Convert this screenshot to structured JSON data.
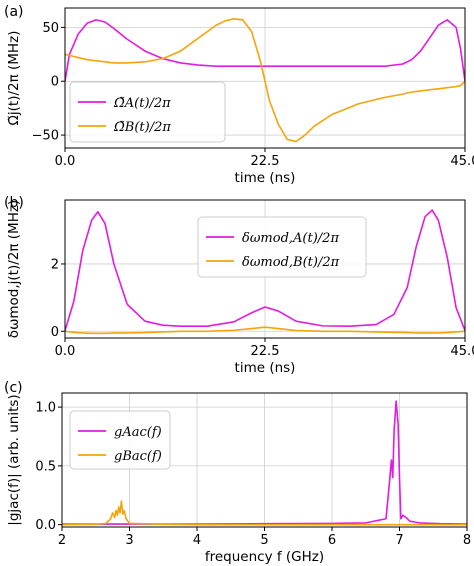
{
  "chart_data": [
    {
      "panel_label": "(a)",
      "type": "line",
      "xlabel": "time (ns)",
      "ylabel": "Ω̃j(t)/2π (MHz)",
      "xlim": [
        0,
        45
      ],
      "ylim": [
        -62,
        68
      ],
      "xticks": [
        0,
        22.5,
        45
      ],
      "xtick_labels": [
        "0.0",
        "22.5",
        "45.0"
      ],
      "yticks": [
        -50,
        0,
        50
      ],
      "ytick_labels": [
        "−50",
        "0",
        "50"
      ],
      "grid": true,
      "legend": "bottom-left",
      "x": [
        0,
        0.5,
        1.5,
        2.5,
        3.5,
        4.5,
        5.5,
        7,
        9,
        11,
        13,
        15,
        17,
        18,
        19,
        20,
        21,
        22,
        22.5,
        23,
        24,
        25,
        26,
        27,
        28,
        30,
        33,
        36,
        38,
        39,
        40,
        41,
        42,
        43,
        44,
        44.5,
        45
      ],
      "series": [
        {
          "name": "Ω̃A(t)/2π",
          "color": "#e31ae3",
          "values": [
            0,
            25,
            44,
            54,
            57,
            55,
            49,
            39,
            28,
            21,
            17,
            15,
            14,
            14,
            14,
            14,
            14,
            14,
            14,
            14,
            14,
            14,
            14,
            14,
            14,
            14,
            14,
            14,
            16,
            20,
            28,
            40,
            52,
            57,
            50,
            30,
            0
          ]
        },
        {
          "name": "Ω̃B(t)/2π",
          "color": "#f5a40a",
          "values": [
            25,
            24,
            22,
            20,
            19,
            18,
            17,
            17,
            18,
            21,
            28,
            40,
            52,
            56,
            58,
            57,
            46,
            18,
            0,
            -18,
            -40,
            -54,
            -56,
            -50,
            -42,
            -31,
            -21,
            -15,
            -12,
            -10,
            -9,
            -8,
            -7,
            -6,
            -5,
            -4,
            0
          ]
        }
      ]
    },
    {
      "panel_label": "(b)",
      "type": "line",
      "xlabel": "time (ns)",
      "ylabel": "δωmod,j(t)/2π (MHz)",
      "xlim": [
        0,
        45
      ],
      "ylim": [
        -0.2,
        3.9
      ],
      "xticks": [
        0,
        22.5,
        45
      ],
      "xtick_labels": [
        "0.0",
        "22.5",
        "45.0"
      ],
      "yticks": [
        0,
        2
      ],
      "ytick_labels": [
        "0",
        "2"
      ],
      "grid": true,
      "legend": "top-right",
      "x": [
        0,
        1,
        2,
        3,
        3.7,
        4.5,
        5.5,
        7,
        9,
        11,
        13,
        16,
        19,
        21,
        22.5,
        24,
        26,
        29,
        32,
        35,
        37,
        38.5,
        39.5,
        40.5,
        41.3,
        42,
        43,
        44,
        45
      ],
      "series": [
        {
          "name": "δωmod,A(t)/2π",
          "color": "#e31ae3",
          "values": [
            0.02,
            0.9,
            2.4,
            3.3,
            3.55,
            3.2,
            2.0,
            0.8,
            0.3,
            0.18,
            0.15,
            0.15,
            0.28,
            0.55,
            0.72,
            0.6,
            0.3,
            0.16,
            0.15,
            0.2,
            0.5,
            1.3,
            2.5,
            3.4,
            3.6,
            3.3,
            2.2,
            0.7,
            0.02
          ]
        },
        {
          "name": "δωmod,B(t)/2π",
          "color": "#f5a40a",
          "values": [
            0,
            -0.03,
            -0.05,
            -0.06,
            -0.06,
            -0.06,
            -0.05,
            -0.05,
            -0.04,
            -0.02,
            0,
            0,
            0.03,
            0.08,
            0.12,
            0.08,
            0.02,
            0,
            0,
            -0.02,
            -0.03,
            -0.04,
            -0.05,
            -0.05,
            -0.05,
            -0.05,
            -0.04,
            -0.02,
            0
          ]
        }
      ]
    },
    {
      "panel_label": "(c)",
      "type": "line",
      "xlabel": "frequency f (GHz)",
      "ylabel": "|gjac(f)| (arb. units)",
      "xlim": [
        2,
        8
      ],
      "ylim": [
        -0.02,
        1.12
      ],
      "xticks": [
        2,
        3,
        4,
        5,
        6,
        7,
        8
      ],
      "xtick_labels": [
        "2",
        "3",
        "4",
        "5",
        "6",
        "7",
        "8"
      ],
      "yticks": [
        0,
        0.5,
        1
      ],
      "ytick_labels": [
        "0.0",
        "0.5",
        "1.0"
      ],
      "grid": true,
      "legend": "top-left",
      "series": [
        {
          "name": "gAac(f)",
          "color": "#e31ae3",
          "x": [
            2,
            3,
            4,
            5,
            6,
            6.5,
            6.8,
            6.85,
            6.88,
            6.9,
            6.92,
            6.95,
            6.98,
            7.0,
            7.02,
            7.05,
            7.1,
            7.15,
            7.3,
            7.6,
            8
          ],
          "values": [
            0.005,
            0.005,
            0.005,
            0.008,
            0.01,
            0.015,
            0.05,
            0.35,
            0.55,
            0.4,
            0.8,
            1.05,
            0.85,
            0.4,
            0.05,
            0.08,
            0.06,
            0.03,
            0.015,
            0.008,
            0.005
          ]
        },
        {
          "name": "gBac(f)",
          "color": "#f5a40a",
          "x": [
            2,
            2.5,
            2.65,
            2.72,
            2.75,
            2.78,
            2.8,
            2.82,
            2.84,
            2.86,
            2.88,
            2.9,
            2.92,
            2.95,
            3.0,
            3.5,
            4,
            8
          ],
          "values": [
            0,
            0.003,
            0.01,
            0.05,
            0.1,
            0.06,
            0.12,
            0.08,
            0.15,
            0.1,
            0.2,
            0.09,
            0.12,
            0.05,
            0.01,
            0.003,
            0,
            0
          ]
        }
      ]
    }
  ]
}
